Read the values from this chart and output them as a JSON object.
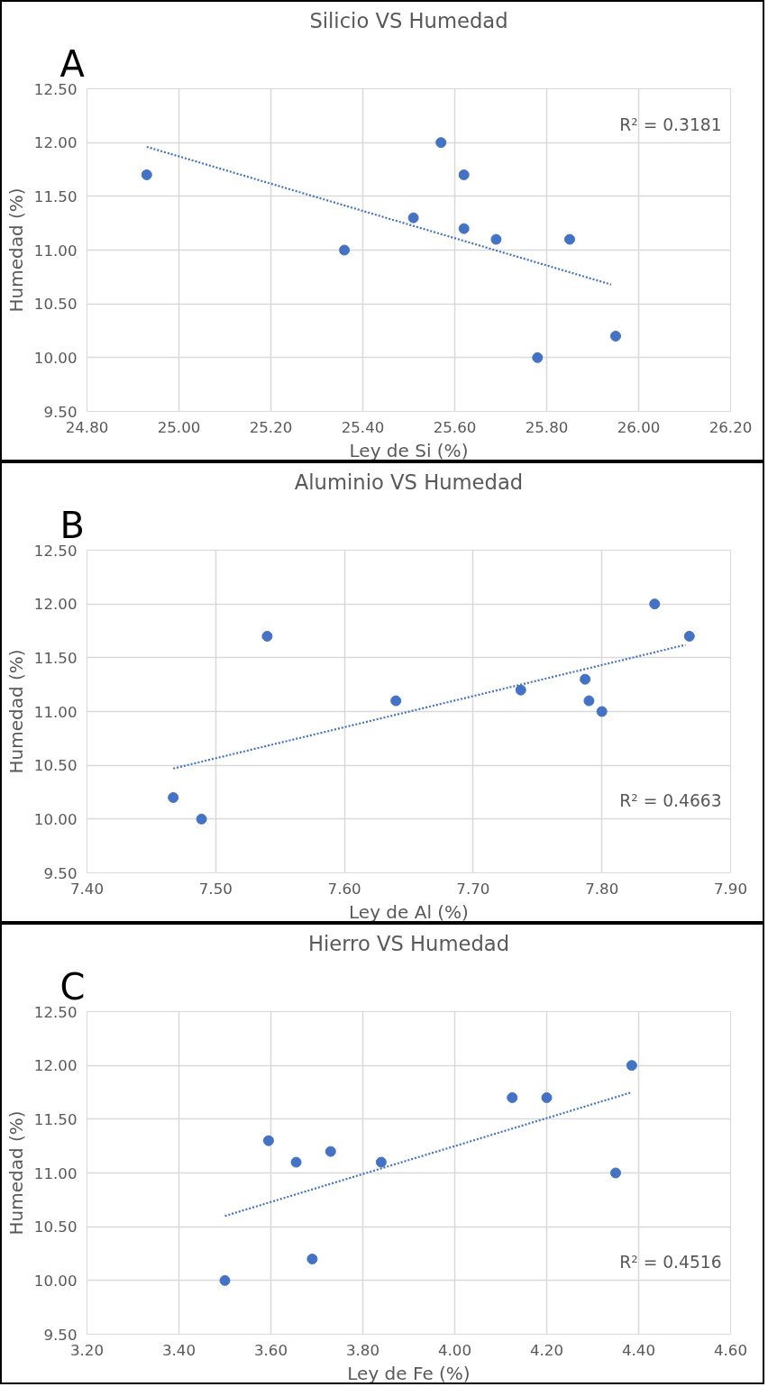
{
  "chart_data": [
    {
      "type": "scatter",
      "title": "Silicio VS Humedad",
      "xlabel": "Ley de Si (%)",
      "ylabel": "Humedad (%)",
      "annotations": [
        "A",
        "R² = 0.3181"
      ],
      "xlim": [
        24.8,
        26.2
      ],
      "xticks": [
        {
          "value": 24.8,
          "label": "24.80"
        },
        {
          "value": 25.0,
          "label": "25.00"
        },
        {
          "value": 25.2,
          "label": "25.20"
        },
        {
          "value": 25.4,
          "label": "25.40"
        },
        {
          "value": 25.6,
          "label": "25.60"
        },
        {
          "value": 25.8,
          "label": "25.80"
        },
        {
          "value": 26.0,
          "label": "26.00"
        },
        {
          "value": 26.2,
          "label": "26.20"
        }
      ],
      "ylim": [
        9.5,
        12.5
      ],
      "yticks": [
        {
          "value": 9.5,
          "label": "9.50"
        },
        {
          "value": 10.0,
          "label": "10.00"
        },
        {
          "value": 10.5,
          "label": "10.50"
        },
        {
          "value": 11.0,
          "label": "11.00"
        },
        {
          "value": 11.5,
          "label": "11.50"
        },
        {
          "value": 12.0,
          "label": "12.00"
        },
        {
          "value": 12.5,
          "label": "12.50"
        }
      ],
      "grid": true,
      "series": [
        {
          "marker": "circle",
          "color": "#4472c4",
          "x": [
            24.93,
            25.36,
            25.51,
            25.57,
            25.62,
            25.62,
            25.69,
            25.78,
            25.85,
            25.95
          ],
          "values": [
            11.7,
            11.0,
            11.3,
            12.0,
            11.7,
            11.2,
            11.1,
            10.0,
            11.1,
            10.2
          ]
        },
        {
          "type": "line",
          "marker": "none",
          "color": "#4472c4",
          "line_style": "dotted",
          "x": [
            24.93,
            25.94
          ],
          "values": [
            11.96,
            10.68
          ]
        }
      ]
    },
    {
      "type": "scatter",
      "title": "Aluminio VS Humedad",
      "xlabel": "Ley de Al (%)",
      "ylabel": "Humedad (%)",
      "annotations": [
        "B",
        "R² = 0.4663"
      ],
      "xlim": [
        7.4,
        7.9
      ],
      "xticks": [
        {
          "value": 7.4,
          "label": "7.40"
        },
        {
          "value": 7.5,
          "label": "7.50"
        },
        {
          "value": 7.6,
          "label": "7.60"
        },
        {
          "value": 7.7,
          "label": "7.70"
        },
        {
          "value": 7.8,
          "label": "7.80"
        },
        {
          "value": 7.9,
          "label": "7.90"
        }
      ],
      "ylim": [
        9.5,
        12.5
      ],
      "yticks": [
        {
          "value": 9.5,
          "label": "9.50"
        },
        {
          "value": 10.0,
          "label": "10.00"
        },
        {
          "value": 10.5,
          "label": "10.50"
        },
        {
          "value": 11.0,
          "label": "11.00"
        },
        {
          "value": 11.5,
          "label": "11.50"
        },
        {
          "value": 12.0,
          "label": "12.00"
        },
        {
          "value": 12.5,
          "label": "12.50"
        }
      ],
      "grid": true,
      "series": [
        {
          "marker": "circle",
          "color": "#4472c4",
          "x": [
            7.467,
            7.489,
            7.54,
            7.64,
            7.737,
            7.787,
            7.79,
            7.8,
            7.841,
            7.868
          ],
          "values": [
            10.2,
            10.0,
            11.7,
            11.1,
            11.2,
            11.3,
            11.1,
            11.0,
            12.0,
            11.7
          ]
        },
        {
          "type": "line",
          "marker": "none",
          "color": "#4472c4",
          "line_style": "dotted",
          "x": [
            7.467,
            7.865
          ],
          "values": [
            10.47,
            11.62
          ]
        }
      ]
    },
    {
      "type": "scatter",
      "title": "Hierro VS Humedad",
      "xlabel": "Ley de Fe (%)",
      "ylabel": "Humedad (%)",
      "annotations": [
        "C",
        "R² = 0.4516"
      ],
      "xlim": [
        3.2,
        4.6
      ],
      "xticks": [
        {
          "value": 3.2,
          "label": "3.20"
        },
        {
          "value": 3.4,
          "label": "3.40"
        },
        {
          "value": 3.6,
          "label": "3.60"
        },
        {
          "value": 3.8,
          "label": "3.80"
        },
        {
          "value": 4.0,
          "label": "4.00"
        },
        {
          "value": 4.2,
          "label": "4.20"
        },
        {
          "value": 4.4,
          "label": "4.40"
        },
        {
          "value": 4.6,
          "label": "4.60"
        }
      ],
      "ylim": [
        9.5,
        12.5
      ],
      "yticks": [
        {
          "value": 9.5,
          "label": "9.50"
        },
        {
          "value": 10.0,
          "label": "10.00"
        },
        {
          "value": 10.5,
          "label": "10.50"
        },
        {
          "value": 11.0,
          "label": "11.00"
        },
        {
          "value": 11.5,
          "label": "11.50"
        },
        {
          "value": 12.0,
          "label": "12.00"
        },
        {
          "value": 12.5,
          "label": "12.50"
        }
      ],
      "grid": true,
      "series": [
        {
          "marker": "circle",
          "color": "#4472c4",
          "x": [
            3.5,
            3.595,
            3.655,
            3.69,
            3.73,
            3.84,
            4.125,
            4.2,
            4.35,
            4.385
          ],
          "values": [
            10.0,
            11.3,
            11.1,
            10.2,
            11.2,
            11.1,
            11.7,
            11.7,
            11.0,
            12.0
          ]
        },
        {
          "type": "line",
          "marker": "none",
          "color": "#4472c4",
          "line_style": "dotted",
          "x": [
            3.5,
            4.385
          ],
          "values": [
            10.6,
            11.75
          ]
        }
      ]
    }
  ]
}
